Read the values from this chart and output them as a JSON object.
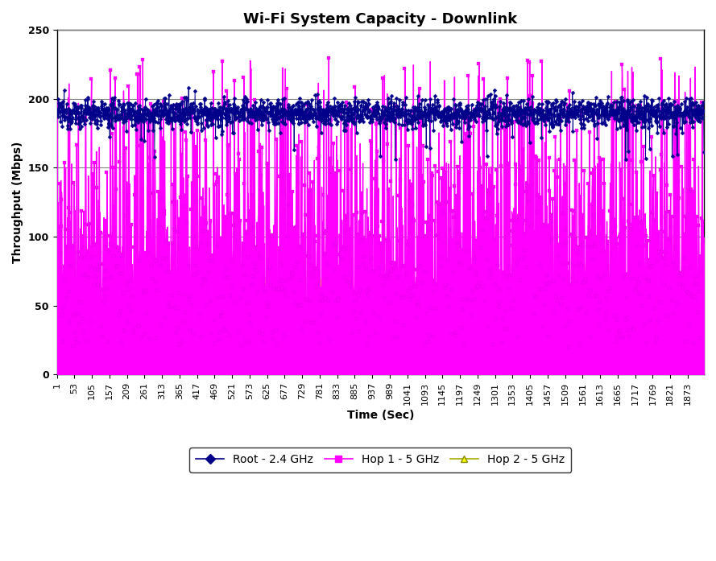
{
  "title": "Wi-Fi System Capacity - Downlink",
  "xlabel": "Time (Sec)",
  "ylabel": "Throughput (Mbps)",
  "ylim": [
    0,
    250
  ],
  "xlim": [
    1,
    1921
  ],
  "x_tick_start": 1,
  "x_tick_step": 52,
  "y_ticks": [
    0,
    50,
    100,
    150,
    200,
    250
  ],
  "root_color": "#00008B",
  "hop1_color": "#FF00FF",
  "hop2_color": "#FFFF00",
  "n_points": 1921,
  "background_color": "#FFFFFF",
  "plot_bg_color": "#FFFFFF",
  "grid_color": "#808080",
  "legend_labels": [
    "Root - 2.4 GHz",
    "Hop 1 - 5 GHz",
    "Hop 2 - 5 GHz"
  ],
  "title_fontsize": 13,
  "axis_label_fontsize": 10,
  "tick_fontsize": 8
}
